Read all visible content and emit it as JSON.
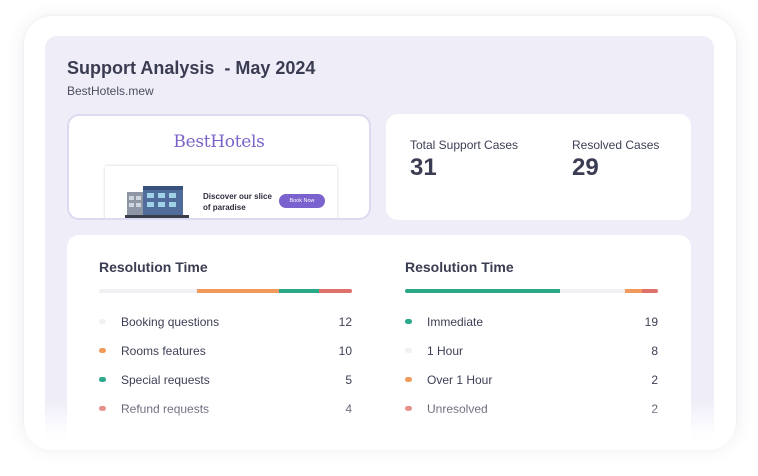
{
  "header": {
    "title": "Support Analysis  - May 2024",
    "subtitle": "BestHotels.mew"
  },
  "brand": {
    "logo_text": "BestHotels",
    "banner_text": "Discover our slice of paradise",
    "banner_button": "Book Now"
  },
  "stats": {
    "total_label": "Total Support Cases",
    "total_value": "31",
    "resolved_label": "Resolved Cases",
    "resolved_value": "29"
  },
  "left_panel": {
    "title": "Resolution Time",
    "items": [
      {
        "label": "Booking questions",
        "count": "12",
        "value": 12,
        "color": "#f0f0f5"
      },
      {
        "label": "Rooms features",
        "count": "10",
        "value": 10,
        "color": "#f19a5c"
      },
      {
        "label": "Special requests",
        "count": "5",
        "value": 5,
        "color": "#2aa88a"
      },
      {
        "label": "Refund requests",
        "count": "4",
        "value": 4,
        "color": "#e0716a"
      }
    ]
  },
  "right_panel": {
    "title": "Resolution Time",
    "items": [
      {
        "label": "Immediate",
        "count": "19",
        "value": 19,
        "color": "#2aa88a"
      },
      {
        "label": "1 Hour",
        "count": "8",
        "value": 8,
        "color": "#f0f0f5"
      },
      {
        "label": "Over 1 Hour",
        "count": "2",
        "value": 2,
        "color": "#f19a5c"
      },
      {
        "label": "Unresolved",
        "count": "2",
        "value": 2,
        "color": "#e0716a"
      }
    ]
  }
}
